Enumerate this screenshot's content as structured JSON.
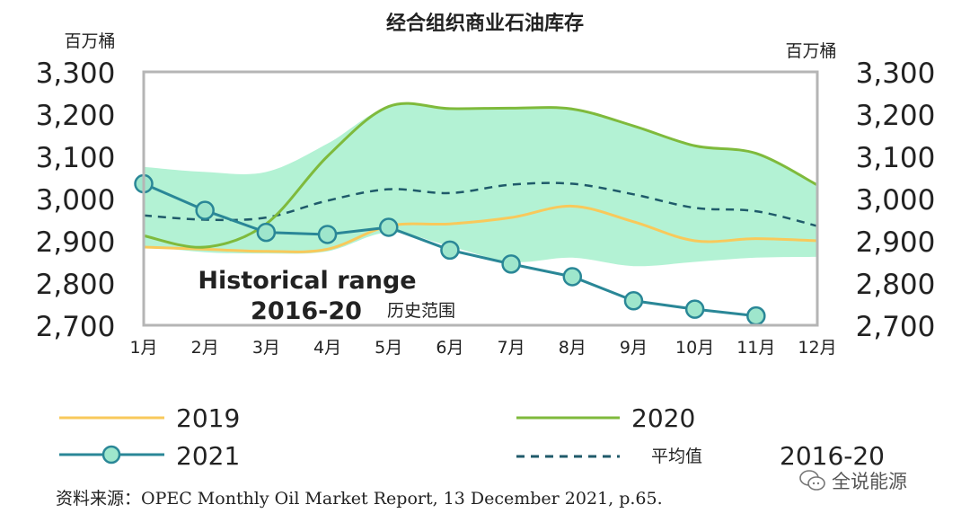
{
  "chart_data": {
    "type": "line",
    "title": "经合组织商业石油库存",
    "ylabel_left": "百万桶",
    "ylabel_right": "百万桶",
    "ylim": [
      2700,
      3300
    ],
    "yticks": [
      2700,
      2800,
      2900,
      3000,
      3100,
      3200,
      3300
    ],
    "ytick_labels": [
      "2,700",
      "2,800",
      "2,900",
      "3,000",
      "3,100",
      "3,200",
      "3,300"
    ],
    "categories": [
      "1月",
      "2月",
      "3月",
      "4月",
      "5月",
      "6月",
      "7月",
      "8月",
      "9月",
      "10月",
      "11月",
      "12月"
    ],
    "range": {
      "name": "2016-20",
      "upper": [
        3075,
        3063,
        3063,
        3130,
        3218,
        3213,
        3214,
        3212,
        3172,
        3125,
        3107,
        3032
      ],
      "lower": [
        2888,
        2873,
        2870,
        2875,
        2920,
        2887,
        2850,
        2860,
        2840,
        2850,
        2860,
        2862
      ]
    },
    "series": [
      {
        "name": "2019",
        "values": [
          2885,
          2880,
          2875,
          2880,
          2935,
          2940,
          2955,
          2982,
          2945,
          2900,
          2905,
          2900
        ]
      },
      {
        "name": "2020",
        "values": [
          2912,
          2885,
          2940,
          3100,
          3218,
          3213,
          3214,
          3212,
          3172,
          3125,
          3107,
          3032
        ]
      },
      {
        "name": "2021",
        "values": [
          3035,
          2972,
          2920,
          2915,
          2932,
          2878,
          2845,
          2815,
          2758,
          2738,
          2722,
          null
        ]
      },
      {
        "name": "平均值",
        "values": [
          2960,
          2950,
          2955,
          2995,
          3022,
          3013,
          3033,
          3035,
          3010,
          2978,
          2970,
          2935
        ]
      }
    ],
    "annotation_line1": "Historical range",
    "annotation_line2": "2016-20",
    "annotation_cn": "历史范围",
    "legend": {
      "l2019": "2019",
      "l2020": "2020",
      "l2021": "2021",
      "lavg": "平均值",
      "lrange": "2016-20"
    },
    "colors": {
      "range": "#b3f2d4",
      "s2019": "#f8c95b",
      "s2020": "#7fba3c",
      "s2021": "#2a8797",
      "avg": "#1f5a6a",
      "marker_fill": "#9ee6cc"
    }
  },
  "source": "资料来源：OPEC Monthly Oil Market Report, 13 December 2021, p.65.",
  "watermark": "全说能源"
}
